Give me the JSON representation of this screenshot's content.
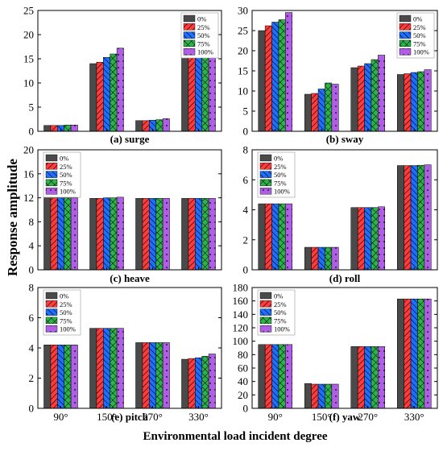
{
  "figure": {
    "ylabel": "Response amplitude",
    "xlabel": "Environmental load incident degree"
  },
  "legend_labels": [
    "0%",
    "25%",
    "50%",
    "75%",
    "100%"
  ],
  "series_colors": [
    "#4a4a4a",
    "#ff3b3b",
    "#1f6fff",
    "#2db34a",
    "#b05ee6"
  ],
  "series_patterns": [
    "solid",
    "diag-right",
    "diag-left",
    "crosshatch",
    "dots"
  ],
  "chart_data": [
    {
      "type": "bar",
      "title": "(a) surge",
      "categories": [
        "90°",
        "150°",
        "270°",
        "330°"
      ],
      "ylim": [
        0,
        25
      ],
      "yticks": [
        0,
        5,
        10,
        15,
        20,
        25
      ],
      "legend_position": "top-right",
      "series": [
        {
          "name": "0%",
          "values": [
            1.2,
            14.0,
            2.2,
            20.3
          ]
        },
        {
          "name": "25%",
          "values": [
            1.2,
            14.3,
            2.2,
            21.3
          ]
        },
        {
          "name": "50%",
          "values": [
            1.2,
            15.3,
            2.3,
            22.2
          ]
        },
        {
          "name": "75%",
          "values": [
            1.3,
            16.0,
            2.4,
            22.8
          ]
        },
        {
          "name": "100%",
          "values": [
            1.3,
            17.2,
            2.6,
            24.1
          ]
        }
      ]
    },
    {
      "type": "bar",
      "title": "(b) sway",
      "categories": [
        "90°",
        "150°",
        "270°",
        "330°"
      ],
      "ylim": [
        0,
        30
      ],
      "yticks": [
        0,
        5,
        10,
        15,
        20,
        25,
        30
      ],
      "legend_position": "top-right",
      "series": [
        {
          "name": "0%",
          "values": [
            25.0,
            9.2,
            15.8,
            14.1
          ]
        },
        {
          "name": "25%",
          "values": [
            26.2,
            9.4,
            16.2,
            14.3
          ]
        },
        {
          "name": "50%",
          "values": [
            27.1,
            10.5,
            16.8,
            14.6
          ]
        },
        {
          "name": "75%",
          "values": [
            27.7,
            12.0,
            17.8,
            14.8
          ]
        },
        {
          "name": "100%",
          "values": [
            29.5,
            11.7,
            18.9,
            15.3
          ]
        }
      ]
    },
    {
      "type": "bar",
      "title": "(c) heave",
      "categories": [
        "90°",
        "150°",
        "270°",
        "330°"
      ],
      "ylim": [
        0,
        20
      ],
      "yticks": [
        0,
        4,
        8,
        12,
        16,
        20
      ],
      "legend_position": "top-left",
      "series": [
        {
          "name": "0%",
          "values": [
            12.0,
            11.9,
            11.9,
            11.9
          ]
        },
        {
          "name": "25%",
          "values": [
            12.0,
            11.9,
            11.9,
            11.9
          ]
        },
        {
          "name": "50%",
          "values": [
            12.0,
            12.0,
            11.9,
            11.9
          ]
        },
        {
          "name": "75%",
          "values": [
            12.0,
            12.0,
            11.9,
            11.9
          ]
        },
        {
          "name": "100%",
          "values": [
            12.0,
            12.1,
            11.9,
            11.9
          ]
        }
      ]
    },
    {
      "type": "bar",
      "title": "(d) roll",
      "categories": [
        "90°",
        "150°",
        "270°",
        "330°"
      ],
      "ylim": [
        0,
        8
      ],
      "yticks": [
        0,
        2,
        4,
        6,
        8
      ],
      "legend_position": "top-left",
      "series": [
        {
          "name": "0%",
          "values": [
            4.4,
            1.5,
            4.15,
            6.95
          ]
        },
        {
          "name": "25%",
          "values": [
            4.4,
            1.5,
            4.15,
            6.95
          ]
        },
        {
          "name": "50%",
          "values": [
            4.4,
            1.5,
            4.15,
            6.95
          ]
        },
        {
          "name": "75%",
          "values": [
            4.4,
            1.5,
            4.15,
            6.97
          ]
        },
        {
          "name": "100%",
          "values": [
            4.4,
            1.5,
            4.2,
            7.0
          ]
        }
      ]
    },
    {
      "type": "bar",
      "title": "(e) pitch",
      "categories": [
        "90°",
        "150°",
        "270°",
        "330°"
      ],
      "ylim": [
        0,
        8
      ],
      "yticks": [
        0,
        2,
        4,
        6,
        8
      ],
      "legend_position": "top-left",
      "series": [
        {
          "name": "0%",
          "values": [
            4.2,
            5.3,
            4.35,
            3.25
          ]
        },
        {
          "name": "25%",
          "values": [
            4.2,
            5.3,
            4.35,
            3.3
          ]
        },
        {
          "name": "50%",
          "values": [
            4.2,
            5.3,
            4.35,
            3.35
          ]
        },
        {
          "name": "75%",
          "values": [
            4.2,
            5.3,
            4.35,
            3.45
          ]
        },
        {
          "name": "100%",
          "values": [
            4.2,
            5.3,
            4.35,
            3.6
          ]
        }
      ]
    },
    {
      "type": "bar",
      "title": "(f) yaw",
      "categories": [
        "90°",
        "150°",
        "270°",
        "330°"
      ],
      "ylim": [
        0,
        180
      ],
      "yticks": [
        0,
        20,
        40,
        60,
        80,
        100,
        120,
        140,
        160,
        180
      ],
      "legend_position": "top-left",
      "series": [
        {
          "name": "0%",
          "values": [
            95,
            37,
            92,
            163
          ]
        },
        {
          "name": "25%",
          "values": [
            95,
            36,
            92,
            163
          ]
        },
        {
          "name": "50%",
          "values": [
            95,
            36,
            92,
            163
          ]
        },
        {
          "name": "75%",
          "values": [
            95,
            36,
            92,
            163
          ]
        },
        {
          "name": "100%",
          "values": [
            95,
            36,
            92,
            163
          ]
        }
      ]
    }
  ]
}
